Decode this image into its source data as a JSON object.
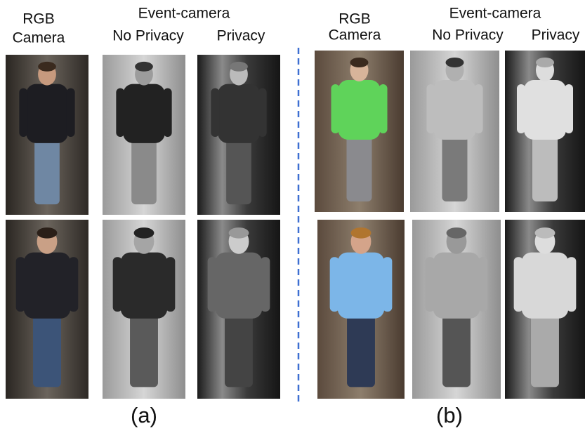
{
  "panels": [
    {
      "rgb_label": [
        "RGB",
        "Camera"
      ],
      "event_label": "Event-camera",
      "columns": [
        "No Privacy",
        "Privacy"
      ],
      "caption": "(a)"
    },
    {
      "rgb_label": [
        "RGB",
        "Camera"
      ],
      "event_label": "Event-camera",
      "columns": [
        "No Privacy",
        "Privacy"
      ],
      "caption": "(b)"
    }
  ]
}
